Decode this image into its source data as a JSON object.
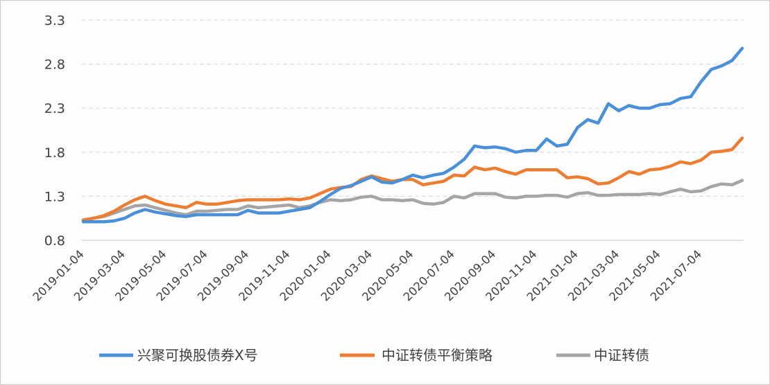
{
  "chart_data": {
    "type": "line",
    "title": "",
    "xlabel": "",
    "ylabel": "",
    "ylim": [
      0.8,
      3.3
    ],
    "yticks": [
      "3.3",
      "2.8",
      "2.3",
      "1.8",
      "1.3",
      "0.8"
    ],
    "xticks": [
      "2019-01-04",
      "2019-03-04",
      "2019-05-04",
      "2019-07-04",
      "2019-09-04",
      "2019-11-04",
      "2020-01-04",
      "2020-03-04",
      "2020-05-04",
      "2020-07-04",
      "2020-09-04",
      "2020-11-04",
      "2021-01-04",
      "2021-03-04",
      "2021-05-04",
      "2021-07-04"
    ],
    "grid": "horizontal dashed",
    "legend_position": "bottom",
    "x": [
      "2019-01-04",
      "2019-01-19",
      "2019-02-04",
      "2019-02-19",
      "2019-03-04",
      "2019-03-19",
      "2019-04-04",
      "2019-04-19",
      "2019-05-04",
      "2019-05-19",
      "2019-06-04",
      "2019-06-19",
      "2019-07-04",
      "2019-07-19",
      "2019-08-04",
      "2019-08-19",
      "2019-09-04",
      "2019-09-19",
      "2019-10-04",
      "2019-10-19",
      "2019-11-04",
      "2019-11-19",
      "2019-12-04",
      "2019-12-19",
      "2020-01-04",
      "2020-01-19",
      "2020-02-04",
      "2020-02-19",
      "2020-03-04",
      "2020-03-19",
      "2020-04-04",
      "2020-04-19",
      "2020-05-04",
      "2020-05-19",
      "2020-06-04",
      "2020-06-19",
      "2020-07-04",
      "2020-07-19",
      "2020-08-04",
      "2020-08-19",
      "2020-09-04",
      "2020-09-19",
      "2020-10-04",
      "2020-10-19",
      "2020-11-04",
      "2020-11-19",
      "2020-12-04",
      "2020-12-19",
      "2021-01-04",
      "2021-01-19",
      "2021-02-04",
      "2021-02-19",
      "2021-03-04",
      "2021-03-19",
      "2021-04-04",
      "2021-04-19",
      "2021-05-04",
      "2021-05-19",
      "2021-06-04",
      "2021-06-19",
      "2021-07-04",
      "2021-07-19",
      "2021-08-04",
      "2021-08-19",
      "2021-09-04"
    ],
    "series": [
      {
        "name": "兴聚可换股债券X号",
        "color": "#4a90d9",
        "values": [
          1.01,
          1.01,
          1.01,
          1.02,
          1.05,
          1.11,
          1.15,
          1.12,
          1.1,
          1.08,
          1.07,
          1.09,
          1.09,
          1.09,
          1.09,
          1.09,
          1.14,
          1.11,
          1.11,
          1.11,
          1.13,
          1.15,
          1.17,
          1.24,
          1.32,
          1.39,
          1.42,
          1.47,
          1.52,
          1.46,
          1.45,
          1.49,
          1.54,
          1.51,
          1.54,
          1.56,
          1.63,
          1.72,
          1.87,
          1.85,
          1.86,
          1.84,
          1.8,
          1.82,
          1.82,
          1.95,
          1.87,
          1.89,
          2.08,
          2.17,
          2.13,
          2.35,
          2.27,
          2.33,
          2.3,
          2.3,
          2.34,
          2.35,
          2.41,
          2.43,
          2.6,
          2.74,
          2.78,
          2.84,
          2.98
        ]
      },
      {
        "name": "中证转债平衡策略",
        "color": "#ed7d31",
        "values": [
          1.03,
          1.05,
          1.08,
          1.13,
          1.2,
          1.26,
          1.3,
          1.25,
          1.21,
          1.19,
          1.17,
          1.23,
          1.21,
          1.21,
          1.23,
          1.25,
          1.26,
          1.26,
          1.26,
          1.26,
          1.27,
          1.26,
          1.28,
          1.33,
          1.38,
          1.4,
          1.41,
          1.49,
          1.53,
          1.5,
          1.47,
          1.49,
          1.49,
          1.43,
          1.45,
          1.47,
          1.54,
          1.53,
          1.63,
          1.6,
          1.62,
          1.58,
          1.55,
          1.6,
          1.6,
          1.6,
          1.6,
          1.51,
          1.52,
          1.5,
          1.44,
          1.45,
          1.51,
          1.58,
          1.55,
          1.6,
          1.61,
          1.64,
          1.69,
          1.67,
          1.71,
          1.8,
          1.81,
          1.83,
          1.96
        ]
      },
      {
        "name": "中证转债",
        "color": "#a5a5a5",
        "values": [
          1.03,
          1.05,
          1.07,
          1.11,
          1.15,
          1.19,
          1.2,
          1.17,
          1.14,
          1.11,
          1.09,
          1.13,
          1.13,
          1.14,
          1.15,
          1.15,
          1.19,
          1.17,
          1.18,
          1.19,
          1.2,
          1.17,
          1.19,
          1.23,
          1.26,
          1.25,
          1.26,
          1.29,
          1.3,
          1.26,
          1.26,
          1.25,
          1.26,
          1.22,
          1.21,
          1.23,
          1.3,
          1.28,
          1.33,
          1.33,
          1.33,
          1.29,
          1.28,
          1.3,
          1.3,
          1.31,
          1.31,
          1.29,
          1.33,
          1.34,
          1.31,
          1.31,
          1.32,
          1.32,
          1.32,
          1.33,
          1.32,
          1.35,
          1.38,
          1.35,
          1.36,
          1.41,
          1.44,
          1.43,
          1.48
        ]
      }
    ]
  },
  "legend": {
    "items": [
      {
        "label": "兴聚可换股债券X号",
        "color": "#4a90d9"
      },
      {
        "label": "中证转债平衡策略",
        "color": "#ed7d31"
      },
      {
        "label": "中证转债",
        "color": "#a5a5a5"
      }
    ]
  }
}
